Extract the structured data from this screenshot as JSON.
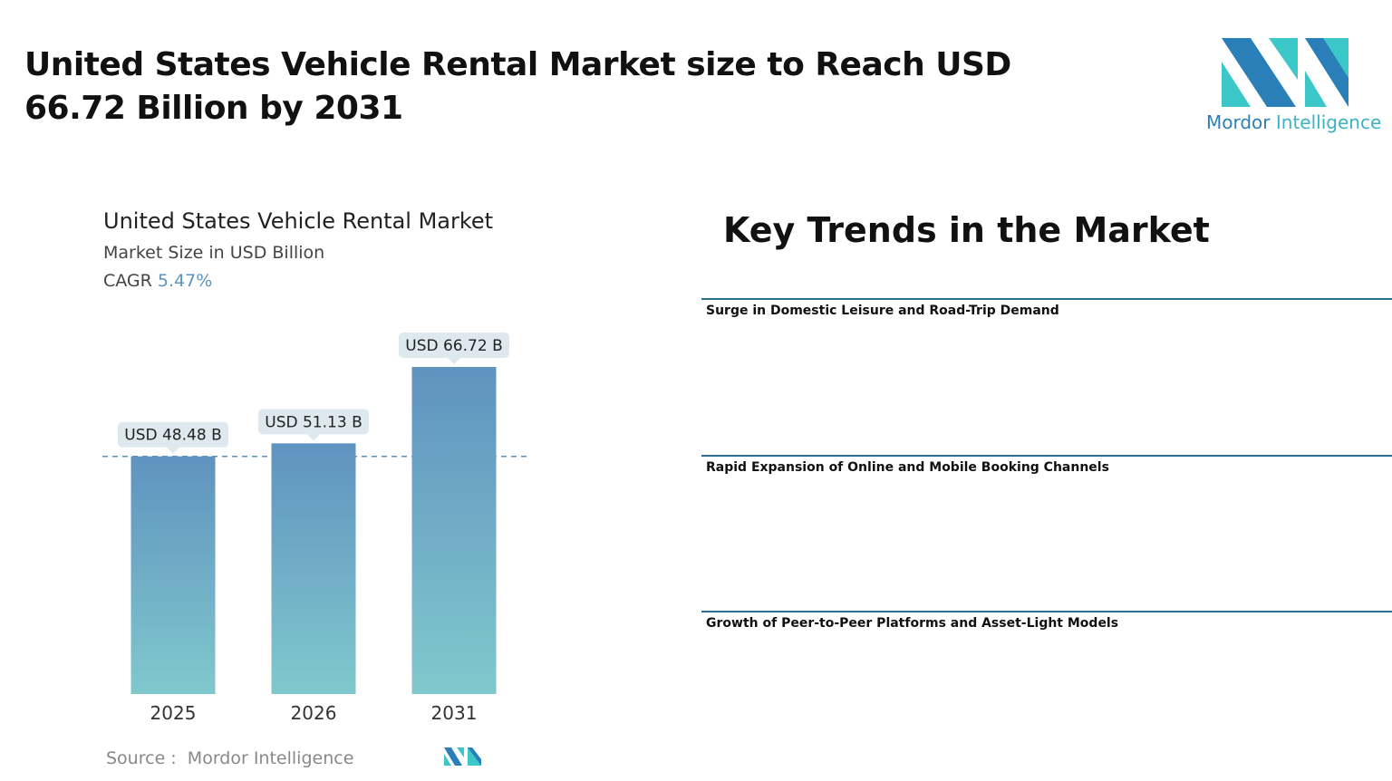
{
  "header": {
    "title": "United States Vehicle Rental Market size to Reach USD 66.72 Billion by 2031"
  },
  "logo": {
    "word1": "Mordor",
    "word2": "Intelligence"
  },
  "chart_data": {
    "type": "bar",
    "title": "United States Vehicle Rental Market",
    "subtitle": "Market Size in USD Billion",
    "cagr_label": "CAGR",
    "cagr_value": "5.47%",
    "categories": [
      "2025",
      "2026",
      "2031"
    ],
    "values": [
      48.48,
      51.13,
      66.72
    ],
    "value_labels": [
      "USD 48.48 B",
      "USD 51.13 B",
      "USD 66.72 B"
    ],
    "color_top": "#5f93bf",
    "color_bottom": "#80c8cd",
    "reference_line": true
  },
  "source": {
    "label": "Source :",
    "name": "Mordor Intelligence"
  },
  "trends": {
    "title": "Key Trends in the Market",
    "items": [
      "Surge in Domestic Leisure and Road-Trip Demand",
      "Rapid Expansion of Online and Mobile Booking Channels",
      "Growth of Peer-to-Peer Platforms and Asset-Light Models"
    ]
  }
}
